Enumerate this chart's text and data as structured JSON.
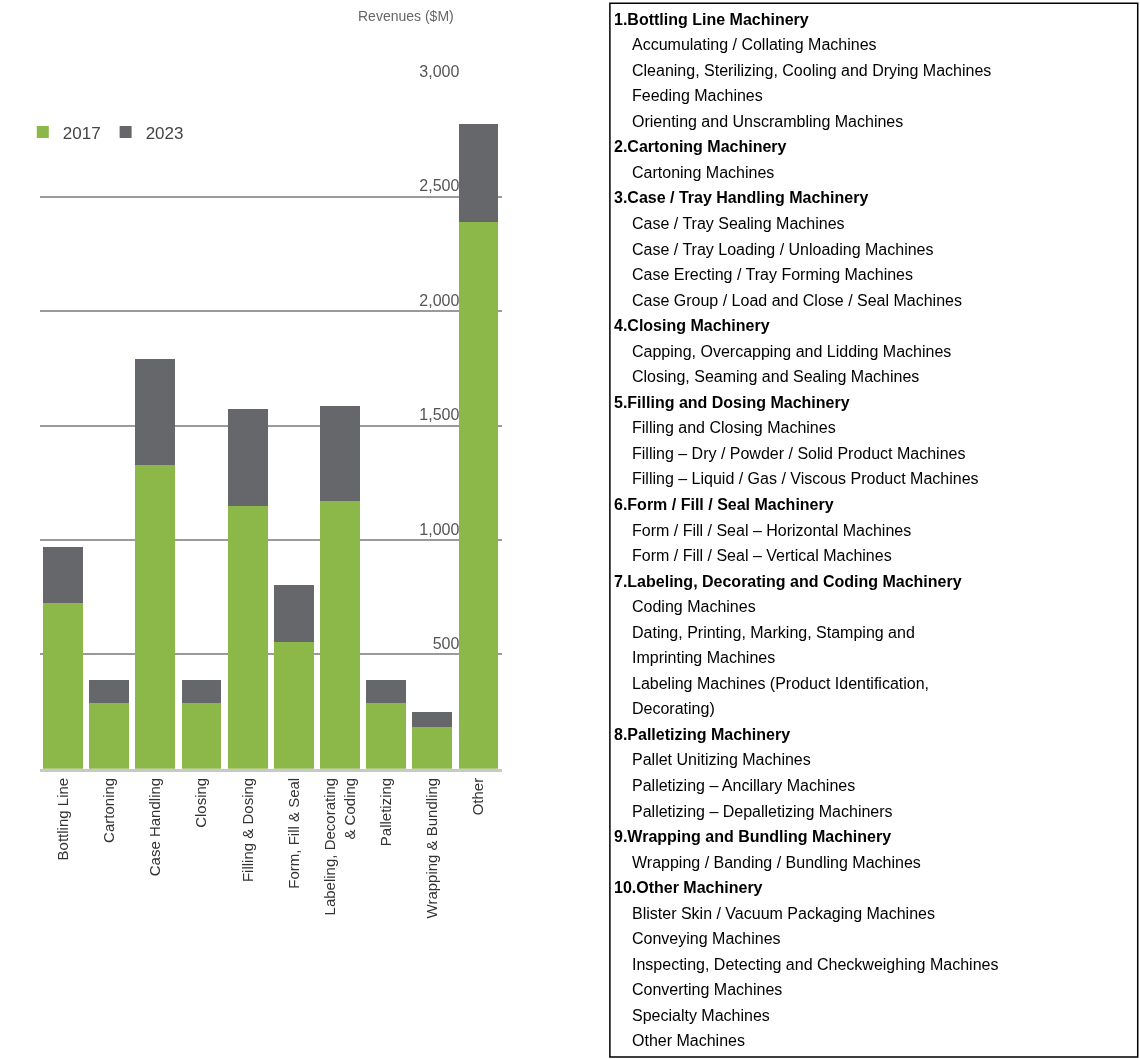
{
  "chart_data": [
    {
      "type": "bar",
      "ylabel": "Revenues ($M)",
      "stacked": true,
      "categories": [
        "Bottling Line",
        "Cartoning",
        "Case Handling",
        "Closing",
        "Filling & Dosing",
        "Form, Fill & Seal",
        "Labeling, Decorating\n& Coding",
        "Palletizing",
        "Wrapping & Bundling",
        "Other"
      ],
      "series": [
        {
          "name": "2017",
          "color": "#8cb84a",
          "values": [
            725,
            290,
            1330,
            290,
            1150,
            555,
            1170,
            290,
            185,
            2390
          ]
        },
        {
          "name": "2023",
          "color": "#66676b",
          "values": [
            245,
            100,
            460,
            100,
            425,
            250,
            415,
            100,
            65,
            430
          ]
        }
      ],
      "ylim": [
        0,
        3000
      ],
      "yticks": [
        500,
        {
          "value": 1000,
          "label": "1,000"
        },
        {
          "value": 1500,
          "label": "1,500"
        },
        {
          "value": 2000,
          "label": "2,000"
        },
        {
          "value": 2500,
          "label": "2,500"
        },
        {
          "value": 3000,
          "label": "3,000"
        }
      ],
      "grid": "y",
      "legend": "top left"
    },
    {
      "type": "other",
      "annotations": [
        "1.Bottling Line Machinery",
        "Accumulating / Collating Machines",
        "Cleaning, Sterilizing, Cooling and Drying Machines",
        "Feeding Machines",
        "Orienting and Unscrambling Machines",
        "2.Cartoning Machinery",
        "Cartoning Machines",
        "3.Case / Tray Handling Machinery",
        "Case / Tray Sealing Machines",
        "Case / Tray Loading / Unloading Machines",
        "Case Erecting / Tray Forming Machines",
        "Case Group / Load and Close / Seal Machines",
        "4.Closing Machinery",
        "Capping, Overcapping and Lidding Machines",
        "Closing, Seaming and Sealing Machines",
        "5.Filling and Dosing Machinery",
        "Filling and Closing Machines",
        "Filling – Dry / Powder / Solid Product Machines",
        "Filling – Liquid / Gas / Viscous Product Machines",
        "6.Form / Fill / Seal Machinery",
        "Form / Fill / Seal – Horizontal Machines",
        "Form / Fill / Seal – Vertical Machines",
        "7.Labeling, Decorating and Coding Machinery",
        "Coding Machines",
        "Dating, Printing, Marking, Stamping and",
        "Imprinting Machines",
        "Labeling Machines (Product Identification,",
        "Decorating)",
        "8.Palletizing Machinery",
        "Pallet Unitizing Machines",
        "Palletizing – Ancillary Machines",
        "Palletizing – Depalletizing Machiners",
        "9.Wrapping and Bundling Machinery",
        "Wrapping / Banding / Bundling Machines",
        "10.Other Machinery",
        "Blister Skin / Vacuum Packaging Machines",
        "Conveying Machines",
        "Inspecting, Detecting and Checkweighing Machines",
        "Converting Machines",
        "Specialty Machines",
        "Other Machines"
      ]
    }
  ]
}
